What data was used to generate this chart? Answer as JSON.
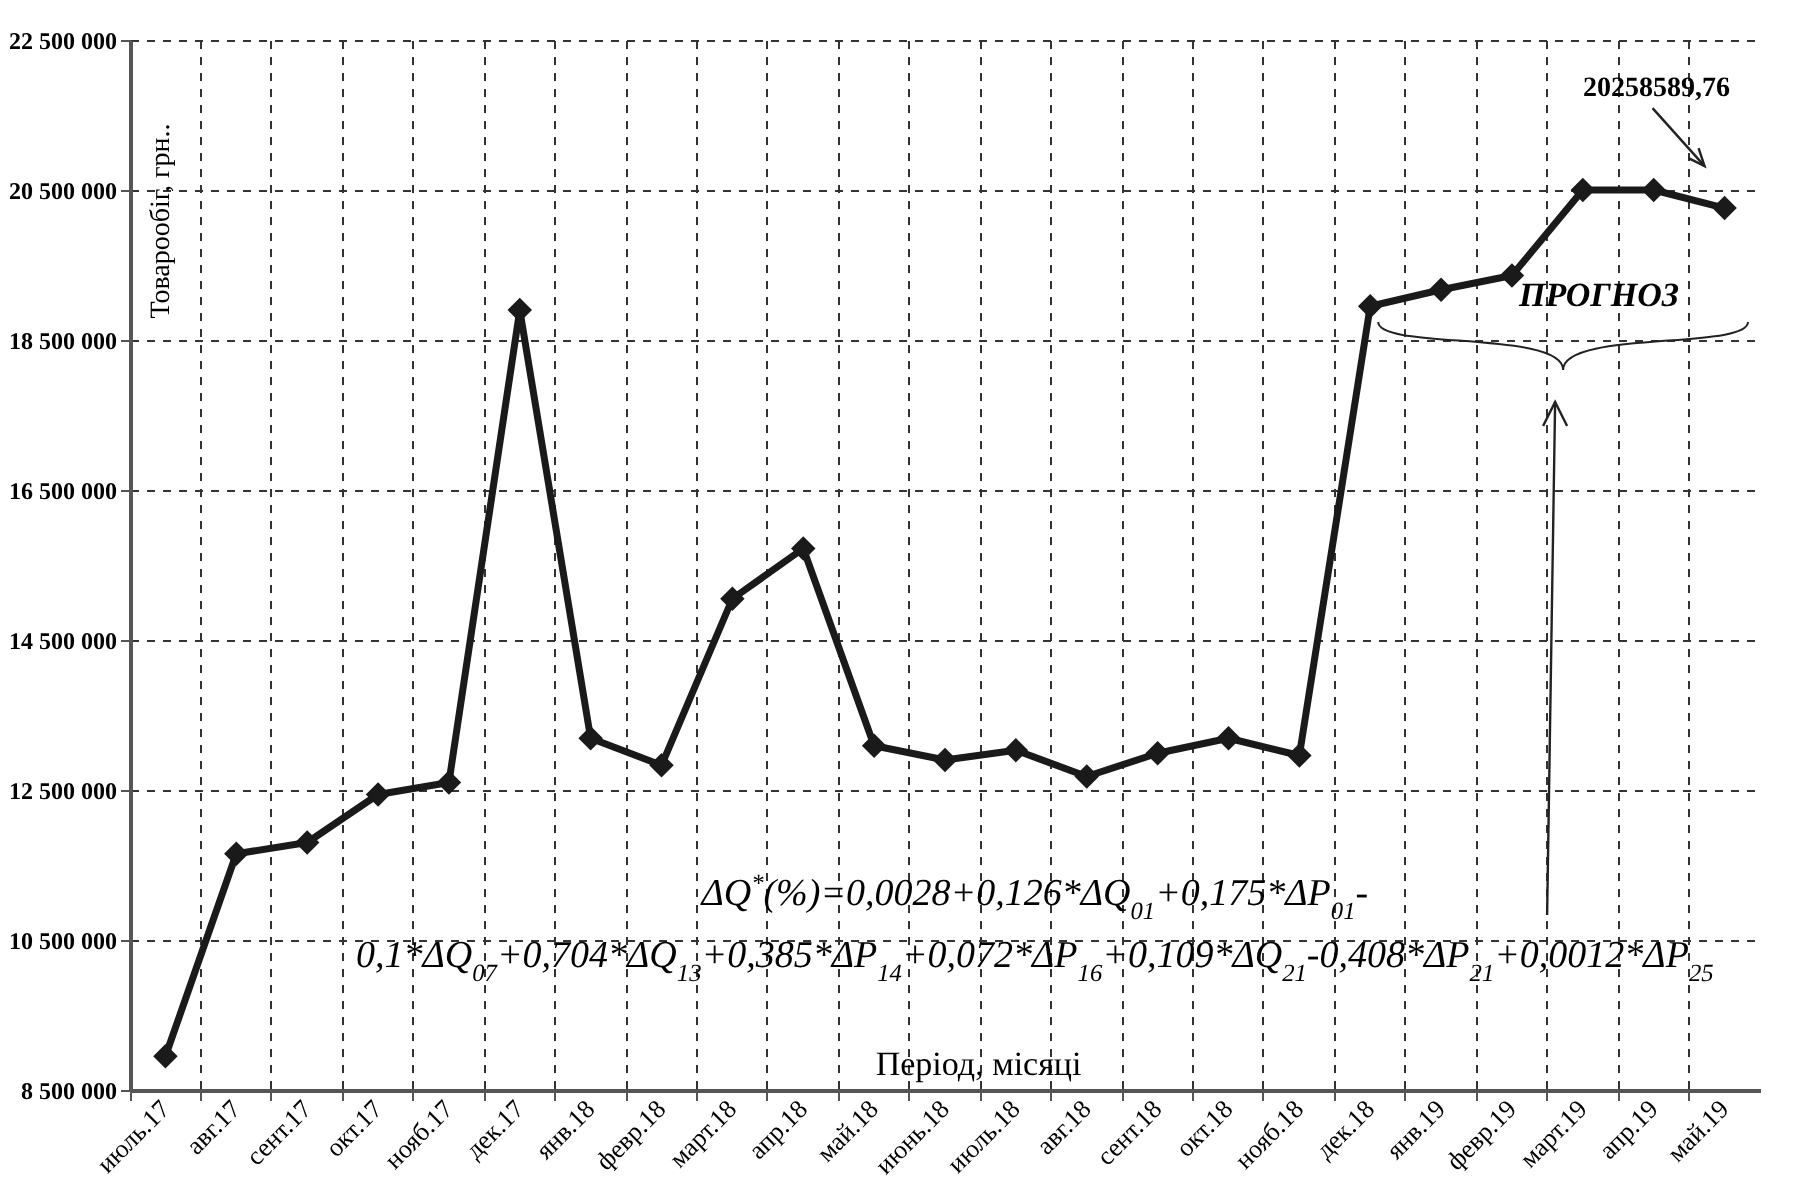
{
  "chart_data": {
    "type": "line",
    "xlabel": "Період, місяці",
    "ylabel": "Товарообіг, грн..",
    "categories": [
      "июль.17",
      "авг.17",
      "сент.17",
      "окт.17",
      "нояб.17",
      "дек.17",
      "янв.18",
      "февр.18",
      "март.18",
      "апр.18",
      "май.18",
      "июнь.18",
      "июль.18",
      "авг.18",
      "сент.18",
      "окт.18",
      "нояб.18",
      "дек.18",
      "янв.19",
      "февр.19",
      "март.19",
      "апр.19",
      "май.19"
    ],
    "series": [
      {
        "color": "#1a1a1a",
        "values": [
          8950000,
          11650000,
          11800000,
          12440000,
          12600000,
          18900000,
          13190000,
          12830000,
          15050000,
          15720000,
          13090000,
          12900000,
          13030000,
          12680000,
          12990000,
          13190000,
          12960000,
          18950000,
          19170000,
          19360000,
          20500000,
          20500000,
          20258589.76
        ]
      }
    ],
    "ylim": [
      8500000,
      22500000
    ],
    "yticks": [
      {
        "value": 8500000,
        "label": "8 500 000"
      },
      {
        "value": 10500000,
        "label": "10 500 000"
      },
      {
        "value": 12500000,
        "label": "12 500 000"
      },
      {
        "value": 14500000,
        "label": "14 500 000"
      },
      {
        "value": 16500000,
        "label": "16 500 000"
      },
      {
        "value": 18500000,
        "label": "18 500 000"
      },
      {
        "value": 20500000,
        "label": "20 500 000"
      },
      {
        "value": 22500000,
        "label": "22 500 000"
      }
    ],
    "grid": true,
    "marker": "diamond",
    "line_style": "solid",
    "legend": false,
    "annotations": [
      "20258589,76",
      "ПРОГНОЗ",
      "ΔQ$^{*}$(%)=0,0028+0,126*ΔQ$_{01}$+0,175*ΔP$_{01}$-",
      "0,1*ΔQ$_{07}$+0,704*ΔQ$_{13}$+0,385*ΔP$_{14}$+0,072*ΔP$_{16}$+0,109*ΔQ$_{21}$-0,408*ΔP$_{21}$+0,0012*ΔP$_{25}$"
    ]
  }
}
